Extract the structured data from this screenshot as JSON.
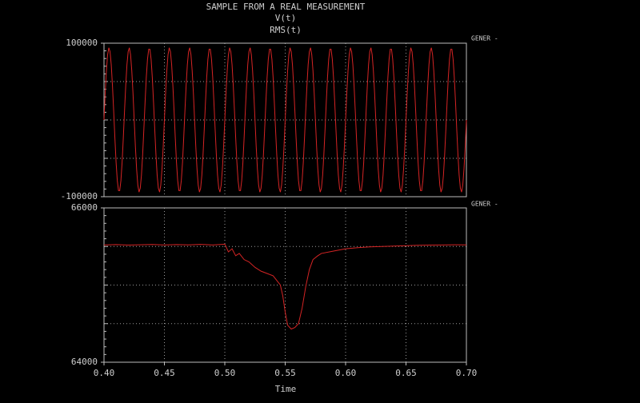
{
  "chart_data": [
    {
      "type": "line",
      "title": "SAMPLE FROM A REAL MEASUREMENT",
      "annotation": "GENER -",
      "grid": true,
      "xlim": [
        0.4,
        0.7
      ],
      "ylim": [
        -100000,
        100000
      ],
      "yticks": [
        -100000,
        100000
      ],
      "x": [
        0.4,
        0.401,
        0.402,
        0.403,
        0.404,
        0.405,
        0.406,
        0.407,
        0.408,
        0.409,
        0.41,
        0.411,
        0.412,
        0.413,
        0.414,
        0.415,
        0.416,
        0.417,
        0.418,
        0.419,
        0.42,
        0.421,
        0.422,
        0.423,
        0.424,
        0.425,
        0.426,
        0.427,
        0.428,
        0.429,
        0.43,
        0.431,
        0.432,
        0.433,
        0.434,
        0.435,
        0.436,
        0.437,
        0.438,
        0.439,
        0.44,
        0.441,
        0.442,
        0.443,
        0.444,
        0.445,
        0.446,
        0.447,
        0.448,
        0.449,
        0.45,
        0.451,
        0.452,
        0.453,
        0.454,
        0.455,
        0.456,
        0.457,
        0.458,
        0.459,
        0.46,
        0.461,
        0.462,
        0.463,
        0.464,
        0.465,
        0.466,
        0.467,
        0.468,
        0.469,
        0.47,
        0.471,
        0.472,
        0.473,
        0.474,
        0.475,
        0.476,
        0.477,
        0.478,
        0.479,
        0.48,
        0.481,
        0.482,
        0.483,
        0.484,
        0.485,
        0.486,
        0.487,
        0.488,
        0.489,
        0.49,
        0.491,
        0.492,
        0.493,
        0.494,
        0.495,
        0.496,
        0.497,
        0.498,
        0.499,
        0.5,
        0.501,
        0.502,
        0.503,
        0.504,
        0.505,
        0.506,
        0.507,
        0.508,
        0.509,
        0.51,
        0.511,
        0.512,
        0.513,
        0.514,
        0.515,
        0.516,
        0.517,
        0.518,
        0.519,
        0.52,
        0.521,
        0.522,
        0.523,
        0.524,
        0.525,
        0.526,
        0.527,
        0.528,
        0.529,
        0.53,
        0.531,
        0.532,
        0.533,
        0.534,
        0.535,
        0.536,
        0.537,
        0.538,
        0.539,
        0.54,
        0.541,
        0.542,
        0.543,
        0.544,
        0.545,
        0.546,
        0.547,
        0.548,
        0.549,
        0.55,
        0.551,
        0.552,
        0.553,
        0.554,
        0.555,
        0.556,
        0.557,
        0.558,
        0.559,
        0.56,
        0.561,
        0.562,
        0.563,
        0.564,
        0.565,
        0.566,
        0.567,
        0.568,
        0.569,
        0.57,
        0.571,
        0.572,
        0.573,
        0.574,
        0.575,
        0.576,
        0.577,
        0.578,
        0.579,
        0.58,
        0.581,
        0.582,
        0.583,
        0.584,
        0.585,
        0.586,
        0.587,
        0.588,
        0.589,
        0.59,
        0.591,
        0.592,
        0.593,
        0.594,
        0.595,
        0.596,
        0.597,
        0.598,
        0.599,
        0.6,
        0.601,
        0.602,
        0.603,
        0.604,
        0.605,
        0.606,
        0.607,
        0.608,
        0.609,
        0.61,
        0.611,
        0.612,
        0.613,
        0.614,
        0.615,
        0.616,
        0.617,
        0.618,
        0.619,
        0.62,
        0.621,
        0.622,
        0.623,
        0.624,
        0.625,
        0.626,
        0.627,
        0.628,
        0.629,
        0.63,
        0.631,
        0.632,
        0.633,
        0.634,
        0.635,
        0.636,
        0.637,
        0.638,
        0.639,
        0.64,
        0.641,
        0.642,
        0.643,
        0.644,
        0.645,
        0.646,
        0.647,
        0.648,
        0.649,
        0.65,
        0.651,
        0.652,
        0.653,
        0.654,
        0.655,
        0.656,
        0.657,
        0.658,
        0.659,
        0.66,
        0.661,
        0.662,
        0.663,
        0.664,
        0.665,
        0.666,
        0.667,
        0.668,
        0.669,
        0.67,
        0.671,
        0.672,
        0.673,
        0.674,
        0.675,
        0.676,
        0.677,
        0.678,
        0.679,
        0.68,
        0.681,
        0.682,
        0.683,
        0.684,
        0.685,
        0.686,
        0.687,
        0.688,
        0.689,
        0.69,
        0.691,
        0.692,
        0.693,
        0.694,
        0.695,
        0.696,
        0.697,
        0.698,
        0.699,
        0.7
      ],
      "series": [
        {
          "name": "V(t)",
          "color": "#d42424",
          "values": [
            0,
            35000,
            64000,
            85000,
            94000,
            89000,
            72000,
            45000,
            12000,
            -23000,
            -55000,
            -79000,
            -92000,
            -92000,
            -79000,
            -55000,
            -23000,
            12000,
            45000,
            72000,
            89000,
            94000,
            85000,
            64000,
            35000,
            0,
            -35000,
            -64000,
            -85000,
            -94000,
            -89000,
            -72000,
            -45000,
            -12000,
            23000,
            55000,
            79000,
            92000,
            92000,
            79000,
            55000,
            23000,
            -12000,
            -45000,
            -72000,
            -89000,
            -94000,
            -85000,
            -64000,
            -35000,
            0,
            35000,
            64000,
            85000,
            94000,
            89000,
            72000,
            45000,
            12000,
            -23000,
            -55000,
            -79000,
            -92000,
            -92000,
            -79000,
            -55000,
            -23000,
            12000,
            45000,
            72000,
            89000,
            94000,
            85000,
            64000,
            35000,
            0,
            -35000,
            -64000,
            -85000,
            -94000,
            -89000,
            -72000,
            -45000,
            -12000,
            23000,
            55000,
            79000,
            92000,
            92000,
            79000,
            55000,
            23000,
            -12000,
            -45000,
            -72000,
            -89000,
            -94000,
            -85000,
            -64000,
            -35000,
            0,
            35000,
            64000,
            85000,
            94000,
            89000,
            72000,
            45000,
            12000,
            -23000,
            -55000,
            -79000,
            -92000,
            -92000,
            -79000,
            -55000,
            -23000,
            12000,
            45000,
            72000,
            89000,
            94000,
            85000,
            64000,
            35000,
            0,
            -35000,
            -64000,
            -85000,
            -94000,
            -89000,
            -72000,
            -45000,
            -12000,
            23000,
            55000,
            79000,
            92000,
            92000,
            79000,
            55000,
            23000,
            -12000,
            -45000,
            -72000,
            -89000,
            -94000,
            -85000,
            -64000,
            -35000,
            0,
            35000,
            64000,
            85000,
            94000,
            89000,
            72000,
            45000,
            12000,
            -23000,
            -55000,
            -79000,
            -92000,
            -92000,
            -79000,
            -55000,
            -23000,
            12000,
            45000,
            72000,
            89000,
            94000,
            85000,
            64000,
            35000,
            0,
            -35000,
            -64000,
            -85000,
            -94000,
            -89000,
            -72000,
            -45000,
            -12000,
            23000,
            55000,
            79000,
            92000,
            92000,
            79000,
            55000,
            23000,
            -12000,
            -45000,
            -72000,
            -89000,
            -94000,
            -85000,
            -64000,
            -35000,
            0,
            35000,
            64000,
            85000,
            94000,
            89000,
            72000,
            45000,
            12000,
            -23000,
            -55000,
            -79000,
            -92000,
            -92000,
            -79000,
            -55000,
            -23000,
            12000,
            45000,
            72000,
            89000,
            94000,
            85000,
            64000,
            35000,
            0,
            -35000,
            -64000,
            -85000,
            -94000,
            -89000,
            -72000,
            -45000,
            -12000,
            23000,
            55000,
            79000,
            92000,
            92000,
            79000,
            55000,
            23000,
            -12000,
            -45000,
            -72000,
            -89000,
            -94000,
            -85000,
            -64000,
            -35000,
            0,
            35000,
            64000,
            85000,
            94000,
            89000,
            72000,
            45000,
            12000,
            -23000,
            -55000,
            -79000,
            -92000,
            -92000,
            -79000,
            -55000,
            -23000,
            12000,
            45000,
            72000,
            89000,
            94000,
            85000,
            64000,
            35000,
            0,
            -35000,
            -64000,
            -85000,
            -94000,
            -89000,
            -72000,
            -45000,
            -12000,
            23000,
            55000,
            79000,
            92000,
            92000,
            79000,
            55000,
            23000,
            -12000,
            -45000,
            -72000,
            -89000,
            -94000,
            -85000,
            -64000,
            -35000,
            0
          ]
        }
      ]
    },
    {
      "type": "line",
      "annotation": "GENER -",
      "xlabel": "Time",
      "grid": true,
      "xlim": [
        0.4,
        0.7
      ],
      "ylim": [
        64000,
        66000
      ],
      "yticks": [
        64000,
        66000
      ],
      "xticks": [
        {
          "value": 0.4,
          "label": "0.40"
        },
        {
          "value": 0.45,
          "label": "0.45"
        },
        {
          "value": 0.5,
          "label": "0.50"
        },
        {
          "value": 0.55,
          "label": "0.55"
        },
        {
          "value": 0.6,
          "label": "0.60"
        },
        {
          "value": 0.65,
          "label": "0.65"
        },
        {
          "value": 0.7,
          "label": "0.70"
        }
      ],
      "x": [
        0.4,
        0.41,
        0.42,
        0.43,
        0.44,
        0.45,
        0.46,
        0.47,
        0.48,
        0.49,
        0.5,
        0.503,
        0.506,
        0.509,
        0.512,
        0.516,
        0.52,
        0.525,
        0.53,
        0.535,
        0.54,
        0.543,
        0.546,
        0.548,
        0.55,
        0.552,
        0.555,
        0.558,
        0.561,
        0.564,
        0.567,
        0.57,
        0.573,
        0.577,
        0.58,
        0.59,
        0.6,
        0.61,
        0.62,
        0.63,
        0.64,
        0.65,
        0.66,
        0.67,
        0.68,
        0.69,
        0.7
      ],
      "series": [
        {
          "name": "RMS(t)",
          "color": "#d42424",
          "values": [
            65520,
            65525,
            65518,
            65522,
            65526,
            65519,
            65524,
            65521,
            65527,
            65520,
            65530,
            65430,
            65470,
            65380,
            65410,
            65330,
            65300,
            65230,
            65180,
            65150,
            65120,
            65060,
            65000,
            64860,
            64650,
            64480,
            64430,
            64450,
            64500,
            64700,
            64980,
            65200,
            65330,
            65380,
            65410,
            65440,
            65470,
            65485,
            65495,
            65500,
            65505,
            65510,
            65515,
            65518,
            65520,
            65522,
            65521
          ]
        }
      ]
    }
  ]
}
